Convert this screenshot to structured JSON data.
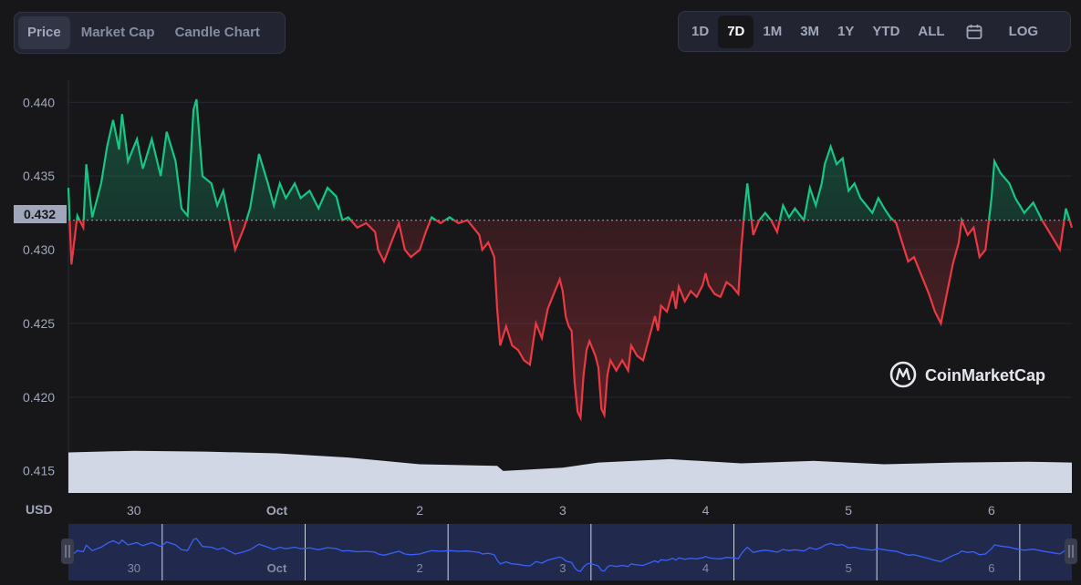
{
  "tabs": {
    "items": [
      {
        "label": "Price",
        "active": true
      },
      {
        "label": "Market Cap",
        "active": false
      },
      {
        "label": "Candle Chart",
        "active": false
      }
    ]
  },
  "ranges": {
    "items": [
      {
        "label": "1D",
        "active": false
      },
      {
        "label": "7D",
        "active": true
      },
      {
        "label": "1M",
        "active": false
      },
      {
        "label": "3M",
        "active": false
      },
      {
        "label": "1Y",
        "active": false
      },
      {
        "label": "YTD",
        "active": false
      },
      {
        "label": "ALL",
        "active": false
      }
    ],
    "calendar_icon": "calendar-icon",
    "log_label": "LOG"
  },
  "watermark": {
    "text": "CoinMarketCap",
    "icon": "coinmarketcap-logo-icon"
  },
  "colors": {
    "up": "#16c784",
    "down": "#ea3943",
    "volume": "#d1d7e4",
    "navigator_line": "#3861fb",
    "reference": "#a1a7bb"
  },
  "chart_data": {
    "type": "line",
    "y_unit_label": "USD",
    "ylim": [
      0.4135,
      0.4415
    ],
    "y_ticks": [
      0.415,
      0.42,
      0.425,
      0.43,
      0.435,
      0.44
    ],
    "y_tick_labels": [
      "0.415",
      "0.420",
      "0.425",
      "0.430",
      "0.435",
      "0.440"
    ],
    "reference_value": 0.432,
    "reference_label": "0.432",
    "current_value": 0.4315,
    "x_range": [
      "Sep 29 13:00",
      "Oct 6 13:30"
    ],
    "x_ticks": [
      {
        "label": "30",
        "x": "Sep 30 00:00"
      },
      {
        "label": "Oct",
        "x": "Oct 1 00:00"
      },
      {
        "label": "2",
        "x": "Oct 2 00:00"
      },
      {
        "label": "3",
        "x": "Oct 3 00:00"
      },
      {
        "label": "4",
        "x": "Oct 4 00:00"
      },
      {
        "label": "5",
        "x": "Oct 5 00:00"
      },
      {
        "label": "6",
        "x": "Oct 6 00:00"
      }
    ],
    "grid": true,
    "series": [
      {
        "values": [
          [
            "Sep 29 13:00",
            0.4342
          ],
          [
            "Sep 29 13:30",
            0.429
          ],
          [
            "Sep 29 14:30",
            0.4323
          ],
          [
            "Sep 29 15:30",
            0.4315
          ],
          [
            "Sep 29 16:00",
            0.4358
          ],
          [
            "Sep 29 17:00",
            0.4322
          ],
          [
            "Sep 29 18:30",
            0.4345
          ],
          [
            "Sep 29 19:30",
            0.437
          ],
          [
            "Sep 29 20:30",
            0.4388
          ],
          [
            "Sep 29 21:30",
            0.4368
          ],
          [
            "Sep 29 22:00",
            0.4392
          ],
          [
            "Sep 29 23:00",
            0.436
          ],
          [
            "Sep 30 00:30",
            0.4375
          ],
          [
            "Sep 30 01:30",
            0.4355
          ],
          [
            "Sep 30 03:00",
            0.4375
          ],
          [
            "Sep 30 04:30",
            0.435
          ],
          [
            "Sep 30 05:30",
            0.438
          ],
          [
            "Sep 30 07:00",
            0.436
          ],
          [
            "Sep 30 08:00",
            0.4328
          ],
          [
            "Sep 30 09:00",
            0.4323
          ],
          [
            "Sep 30 10:00",
            0.4395
          ],
          [
            "Sep 30 10:30",
            0.4402
          ],
          [
            "Sep 30 11:30",
            0.435
          ],
          [
            "Sep 30 13:00",
            0.4345
          ],
          [
            "Sep 30 14:00",
            0.433
          ],
          [
            "Sep 30 15:00",
            0.434
          ],
          [
            "Sep 30 16:00",
            0.432
          ],
          [
            "Sep 30 17:00",
            0.43
          ],
          [
            "Sep 30 18:30",
            0.4315
          ],
          [
            "Sep 30 19:30",
            0.4328
          ],
          [
            "Sep 30 20:30",
            0.4352
          ],
          [
            "Sep 30 21:00",
            0.4365
          ],
          [
            "Sep 30 22:30",
            0.4345
          ],
          [
            "Sep 30 23:30",
            0.433
          ],
          [
            "Oct 1 00:30",
            0.4345
          ],
          [
            "Oct 1 01:30",
            0.4335
          ],
          [
            "Oct 1 03:00",
            0.4345
          ],
          [
            "Oct 1 04:00",
            0.4335
          ],
          [
            "Oct 1 05:30",
            0.434
          ],
          [
            "Oct 1 07:00",
            0.4328
          ],
          [
            "Oct 1 08:30",
            0.4342
          ],
          [
            "Oct 1 10:00",
            0.4336
          ],
          [
            "Oct 1 11:00",
            0.432
          ],
          [
            "Oct 1 12:00",
            0.4322
          ],
          [
            "Oct 1 13:30",
            0.4315
          ],
          [
            "Oct 1 15:00",
            0.4318
          ],
          [
            "Oct 1 16:30",
            0.4312
          ],
          [
            "Oct 1 17:00",
            0.43
          ],
          [
            "Oct 1 18:00",
            0.4292
          ],
          [
            "Oct 1 19:30",
            0.4308
          ],
          [
            "Oct 1 20:30",
            0.4318
          ],
          [
            "Oct 1 21:30",
            0.43
          ],
          [
            "Oct 1 22:30",
            0.4295
          ],
          [
            "Oct 2 00:00",
            0.43
          ],
          [
            "Oct 2 01:00",
            0.4312
          ],
          [
            "Oct 2 02:00",
            0.4322
          ],
          [
            "Oct 2 03:30",
            0.4318
          ],
          [
            "Oct 2 05:00",
            0.4322
          ],
          [
            "Oct 2 06:30",
            0.4318
          ],
          [
            "Oct 2 08:00",
            0.432
          ],
          [
            "Oct 2 09:00",
            0.4315
          ],
          [
            "Oct 2 10:00",
            0.431
          ],
          [
            "Oct 2 10:30",
            0.43
          ],
          [
            "Oct 2 11:30",
            0.4305
          ],
          [
            "Oct 2 12:30",
            0.4295
          ],
          [
            "Oct 2 13:00",
            0.426
          ],
          [
            "Oct 2 13:30",
            0.4235
          ],
          [
            "Oct 2 14:30",
            0.4248
          ],
          [
            "Oct 2 15:30",
            0.4235
          ],
          [
            "Oct 2 16:30",
            0.4232
          ],
          [
            "Oct 2 17:30",
            0.4225
          ],
          [
            "Oct 2 18:30",
            0.4222
          ],
          [
            "Oct 2 19:30",
            0.425
          ],
          [
            "Oct 2 20:30",
            0.424
          ],
          [
            "Oct 2 21:30",
            0.426
          ],
          [
            "Oct 2 22:30",
            0.427
          ],
          [
            "Oct 2 23:30",
            0.428
          ],
          [
            "Oct 3 00:00",
            0.4272
          ],
          [
            "Oct 3 00:30",
            0.4255
          ],
          [
            "Oct 3 01:00",
            0.4248
          ],
          [
            "Oct 3 01:30",
            0.4245
          ],
          [
            "Oct 3 02:00",
            0.421
          ],
          [
            "Oct 3 02:30",
            0.419
          ],
          [
            "Oct 3 03:00",
            0.4186
          ],
          [
            "Oct 3 03:30",
            0.4215
          ],
          [
            "Oct 3 04:00",
            0.4232
          ],
          [
            "Oct 3 04:30",
            0.4238
          ],
          [
            "Oct 3 05:30",
            0.4228
          ],
          [
            "Oct 3 06:00",
            0.422
          ],
          [
            "Oct 3 06:30",
            0.4192
          ],
          [
            "Oct 3 07:00",
            0.4188
          ],
          [
            "Oct 3 07:30",
            0.4215
          ],
          [
            "Oct 3 08:00",
            0.4225
          ],
          [
            "Oct 3 09:00",
            0.4218
          ],
          [
            "Oct 3 10:00",
            0.4225
          ],
          [
            "Oct 3 11:00",
            0.4218
          ],
          [
            "Oct 3 11:30",
            0.4235
          ],
          [
            "Oct 3 12:30",
            0.4228
          ],
          [
            "Oct 3 13:30",
            0.4225
          ],
          [
            "Oct 3 14:30",
            0.424
          ],
          [
            "Oct 3 15:30",
            0.4255
          ],
          [
            "Oct 3 16:00",
            0.4245
          ],
          [
            "Oct 3 16:30",
            0.4262
          ],
          [
            "Oct 3 17:30",
            0.4258
          ],
          [
            "Oct 3 18:30",
            0.4272
          ],
          [
            "Oct 3 19:00",
            0.426
          ],
          [
            "Oct 3 19:30",
            0.4275
          ],
          [
            "Oct 3 20:30",
            0.4265
          ],
          [
            "Oct 3 21:30",
            0.4272
          ],
          [
            "Oct 3 22:30",
            0.4268
          ],
          [
            "Oct 3 23:30",
            0.4276
          ],
          [
            "Oct 4 00:00",
            0.4284
          ],
          [
            "Oct 4 00:30",
            0.4276
          ],
          [
            "Oct 4 01:30",
            0.427
          ],
          [
            "Oct 4 02:30",
            0.4268
          ],
          [
            "Oct 4 03:30",
            0.4278
          ],
          [
            "Oct 4 04:30",
            0.4275
          ],
          [
            "Oct 4 05:30",
            0.427
          ],
          [
            "Oct 4 06:00",
            0.4302
          ],
          [
            "Oct 4 06:30",
            0.4325
          ],
          [
            "Oct 4 07:00",
            0.4345
          ],
          [
            "Oct 4 08:00",
            0.431
          ],
          [
            "Oct 4 09:00",
            0.432
          ],
          [
            "Oct 4 10:00",
            0.4325
          ],
          [
            "Oct 4 11:00",
            0.432
          ],
          [
            "Oct 4 12:00",
            0.4312
          ],
          [
            "Oct 4 13:00",
            0.433
          ],
          [
            "Oct 4 14:00",
            0.4322
          ],
          [
            "Oct 4 15:00",
            0.4328
          ],
          [
            "Oct 4 16:30",
            0.432
          ],
          [
            "Oct 4 17:30",
            0.4342
          ],
          [
            "Oct 4 18:30",
            0.433
          ],
          [
            "Oct 4 19:30",
            0.4345
          ],
          [
            "Oct 4 20:00",
            0.4358
          ],
          [
            "Oct 4 21:00",
            0.437
          ],
          [
            "Oct 4 22:00",
            0.4358
          ],
          [
            "Oct 4 23:00",
            0.4362
          ],
          [
            "Oct 5 00:00",
            0.434
          ],
          [
            "Oct 5 01:00",
            0.4345
          ],
          [
            "Oct 5 02:00",
            0.4335
          ],
          [
            "Oct 5 03:00",
            0.433
          ],
          [
            "Oct 5 04:00",
            0.4325
          ],
          [
            "Oct 5 05:00",
            0.4335
          ],
          [
            "Oct 5 06:00",
            0.4328
          ],
          [
            "Oct 5 07:00",
            0.4322
          ],
          [
            "Oct 5 08:00",
            0.4318
          ],
          [
            "Oct 5 09:00",
            0.4305
          ],
          [
            "Oct 5 10:00",
            0.4292
          ],
          [
            "Oct 5 11:00",
            0.4295
          ],
          [
            "Oct 5 12:00",
            0.4285
          ],
          [
            "Oct 5 13:30",
            0.427
          ],
          [
            "Oct 5 14:30",
            0.4258
          ],
          [
            "Oct 5 15:30",
            0.425
          ],
          [
            "Oct 5 16:30",
            0.427
          ],
          [
            "Oct 5 17:30",
            0.429
          ],
          [
            "Oct 5 18:30",
            0.4305
          ],
          [
            "Oct 5 19:00",
            0.432
          ],
          [
            "Oct 5 20:00",
            0.431
          ],
          [
            "Oct 5 21:00",
            0.4315
          ],
          [
            "Oct 5 22:00",
            0.4295
          ],
          [
            "Oct 5 23:00",
            0.43
          ],
          [
            "Oct 6 00:00",
            0.4335
          ],
          [
            "Oct 6 00:30",
            0.436
          ],
          [
            "Oct 6 01:30",
            0.4352
          ],
          [
            "Oct 6 03:00",
            0.4345
          ],
          [
            "Oct 6 04:00",
            0.4335
          ],
          [
            "Oct 6 05:30",
            0.4325
          ],
          [
            "Oct 6 07:00",
            0.4332
          ],
          [
            "Oct 6 08:30",
            0.432
          ],
          [
            "Oct 6 10:00",
            0.431
          ],
          [
            "Oct 6 11:30",
            0.43
          ],
          [
            "Oct 6 12:30",
            0.4328
          ],
          [
            "Oct 6 13:30",
            0.4315
          ]
        ]
      }
    ],
    "volume_relative": [
      [
        "Sep 29 13:00",
        0.72
      ],
      [
        "Sep 30 00:00",
        0.74
      ],
      [
        "Sep 30 12:00",
        0.73
      ],
      [
        "Oct 1 00:00",
        0.71
      ],
      [
        "Oct 1 12:00",
        0.66
      ],
      [
        "Oct 2 00:00",
        0.58
      ],
      [
        "Oct 2 13:00",
        0.56
      ],
      [
        "Oct 2 14:00",
        0.5
      ],
      [
        "Oct 3 00:00",
        0.54
      ],
      [
        "Oct 3 06:00",
        0.6
      ],
      [
        "Oct 3 18:00",
        0.64
      ],
      [
        "Oct 4 06:00",
        0.59
      ],
      [
        "Oct 4 18:00",
        0.62
      ],
      [
        "Oct 5 06:00",
        0.58
      ],
      [
        "Oct 5 18:00",
        0.6
      ],
      [
        "Oct 6 06:00",
        0.61
      ],
      [
        "Oct 6 13:30",
        0.6
      ]
    ]
  }
}
